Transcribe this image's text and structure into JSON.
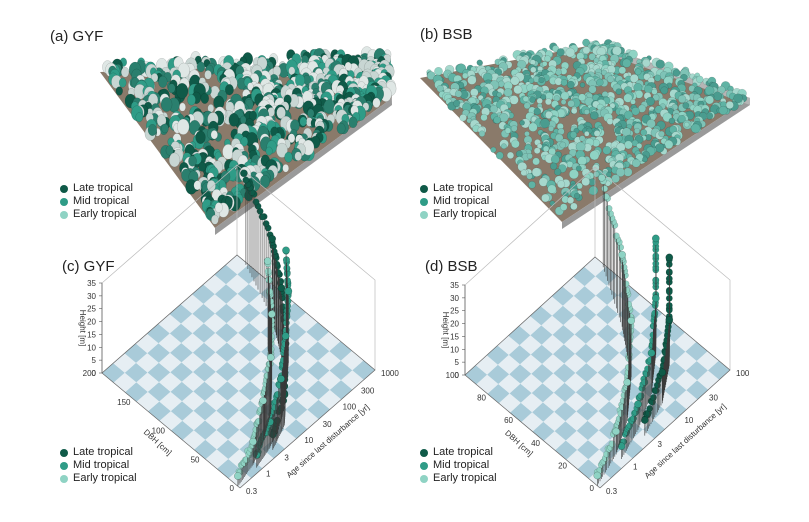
{
  "colors": {
    "late": "#0f5a48",
    "mid": "#2f9c87",
    "early": "#8fd3c4",
    "floor_light": "#e6eef3",
    "floor_dark": "#a9cbd9",
    "stem": "#3a3a3a"
  },
  "panels": {
    "a": {
      "title": "(a) GYF"
    },
    "b": {
      "title": "(b) BSB"
    },
    "c": {
      "title": "(c) GYF"
    },
    "d": {
      "title": "(d) BSB"
    }
  },
  "legend": {
    "late": "Late tropical",
    "mid": "Mid tropical",
    "early": "Early tropical"
  },
  "chart_data": [
    {
      "panel": "a",
      "type": "other",
      "description_source": "3D stand visualization",
      "title": "(a) GYF",
      "legend": [
        "Late tropical",
        "Mid tropical",
        "Early tropical"
      ]
    },
    {
      "panel": "b",
      "type": "other",
      "title": "(b) BSB",
      "legend": [
        "Late tropical",
        "Mid tropical",
        "Early tropical"
      ]
    },
    {
      "panel": "c",
      "type": "scatter",
      "title": "(c) GYF",
      "xlabel": "Age since last disturbance [yr]",
      "ylabel": "DBH [cm]",
      "zlabel": "Height [m]",
      "x_ticks": [
        "0.3",
        "1",
        "3",
        "10",
        "30",
        "100",
        "300",
        "1000"
      ],
      "y_ticks": [
        "0",
        "50",
        "100",
        "150",
        "200"
      ],
      "z_ticks": [
        "0",
        "5",
        "10",
        "15",
        "20",
        "25",
        "30",
        "35"
      ],
      "xlim": [
        0.3,
        1000
      ],
      "ylim": [
        0,
        200
      ],
      "zlim": [
        0,
        35
      ],
      "x_scale": "log",
      "series": [
        {
          "name": "Late tropical",
          "age": [
            3,
            10,
            30,
            100,
            300,
            1000
          ],
          "dbh": [
            8,
            20,
            45,
            80,
            120,
            190
          ],
          "height": [
            6,
            12,
            20,
            27,
            31,
            34
          ]
        },
        {
          "name": "Mid tropical",
          "age": [
            1,
            3,
            10,
            30,
            100,
            300
          ],
          "dbh": [
            5,
            12,
            25,
            45,
            70,
            100
          ],
          "height": [
            5,
            10,
            17,
            23,
            28,
            31
          ]
        },
        {
          "name": "Early tropical",
          "age": [
            0.3,
            1,
            3,
            10,
            30,
            100
          ],
          "dbh": [
            3,
            10,
            22,
            40,
            65,
            100
          ],
          "height": [
            4,
            9,
            16,
            22,
            27,
            33
          ]
        }
      ],
      "legend": [
        "Late tropical",
        "Mid tropical",
        "Early tropical"
      ]
    },
    {
      "panel": "d",
      "type": "scatter",
      "title": "(d) BSB",
      "xlabel": "Age since last disturbance [yr]",
      "ylabel": "DBH [cm]",
      "zlabel": "Height [m]",
      "x_ticks": [
        "0.3",
        "1",
        "3",
        "10",
        "30",
        "100"
      ],
      "y_ticks": [
        "0",
        "20",
        "40",
        "60",
        "80",
        "100"
      ],
      "z_ticks": [
        "0",
        "5",
        "10",
        "15",
        "20",
        "25",
        "30",
        "35"
      ],
      "xlim": [
        0.3,
        100
      ],
      "ylim": [
        0,
        100
      ],
      "zlim": [
        0,
        35
      ],
      "x_scale": "log",
      "series": [
        {
          "name": "Late tropical",
          "age": [
            3,
            10,
            30,
            100
          ],
          "dbh": [
            5,
            12,
            25,
            45
          ],
          "height": [
            6,
            12,
            18,
            24
          ]
        },
        {
          "name": "Mid tropical",
          "age": [
            1,
            3,
            10,
            30,
            100
          ],
          "dbh": [
            4,
            10,
            20,
            35,
            55
          ],
          "height": [
            5,
            10,
            16,
            22,
            27
          ]
        },
        {
          "name": "Early tropical",
          "age": [
            0.3,
            1,
            3,
            10,
            30,
            100
          ],
          "dbh": [
            2,
            8,
            18,
            35,
            60,
            95
          ],
          "height": [
            4,
            9,
            15,
            22,
            28,
            33
          ]
        }
      ],
      "legend": [
        "Late tropical",
        "Mid tropical",
        "Early tropical"
      ]
    }
  ]
}
